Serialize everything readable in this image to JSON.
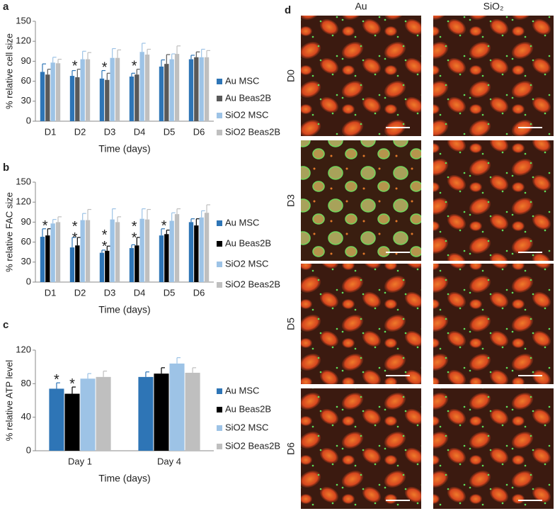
{
  "chart_data": [
    {
      "type": "bar",
      "panel_label": "a",
      "ylabel": "% relative cell size",
      "xlabel": "Time (days)",
      "categories": [
        "D1",
        "D2",
        "D3",
        "D4",
        "D5",
        "D6"
      ],
      "series": [
        {
          "name": "Au MSC",
          "color": "#2e75b6",
          "values": [
            74,
            68,
            64,
            67,
            82,
            93
          ],
          "errors": [
            12,
            8,
            12,
            5,
            10,
            6
          ]
        },
        {
          "name": "Au Beas2B",
          "color": "#595959",
          "values": [
            70,
            66,
            62,
            70,
            86,
            96
          ],
          "errors": [
            8,
            12,
            10,
            8,
            14,
            8
          ]
        },
        {
          "name": "SiO2 MSC",
          "color": "#9dc3e6",
          "values": [
            88,
            93,
            95,
            104,
            93,
            96
          ],
          "errors": [
            8,
            12,
            14,
            13,
            8,
            12
          ]
        },
        {
          "name": "SiO2 Beas2B",
          "color": "#bfbfbf",
          "values": [
            87,
            93,
            95,
            100,
            101,
            96
          ],
          "errors": [
            6,
            10,
            12,
            8,
            12,
            10
          ]
        }
      ],
      "ylim": [
        0,
        150
      ],
      "yticks": [
        0,
        30,
        60,
        90,
        120,
        150
      ],
      "annotations": [
        {
          "text": "*",
          "x": "D2"
        },
        {
          "text": "*",
          "x": "D3"
        },
        {
          "text": "*",
          "x": "D4"
        }
      ]
    },
    {
      "type": "bar",
      "panel_label": "b",
      "ylabel": "% relative FAC size",
      "xlabel": "Time (days)",
      "categories": [
        "D1",
        "D2",
        "D3",
        "D4",
        "D5",
        "D6"
      ],
      "series": [
        {
          "name": "Au MSC",
          "color": "#2e75b6",
          "values": [
            68,
            52,
            44,
            51,
            70,
            90
          ],
          "errors": [
            12,
            15,
            4,
            5,
            10,
            5
          ]
        },
        {
          "name": "Au Beas2B",
          "color": "#000000",
          "values": [
            70,
            55,
            47,
            55,
            72,
            85
          ],
          "errors": [
            10,
            12,
            7,
            12,
            6,
            10
          ]
        },
        {
          "name": "SiO2 MSC",
          "color": "#9dc3e6",
          "values": [
            88,
            93,
            94,
            95,
            92,
            97
          ],
          "errors": [
            6,
            10,
            16,
            15,
            12,
            10
          ]
        },
        {
          "name": "SiO2 Beas2B",
          "color": "#bfbfbf",
          "values": [
            90,
            93,
            90,
            94,
            102,
            104
          ],
          "errors": [
            8,
            16,
            8,
            15,
            8,
            12
          ]
        }
      ],
      "ylim": [
        0,
        150
      ],
      "yticks": [
        0,
        30,
        60,
        90,
        120,
        150
      ],
      "annotations": [
        {
          "text": "*",
          "x": "D1"
        },
        {
          "text": "**",
          "x": "D2"
        },
        {
          "text": "**",
          "x": "D3"
        },
        {
          "text": "**",
          "x": "D4"
        },
        {
          "text": "*",
          "x": "D5"
        }
      ]
    },
    {
      "type": "bar",
      "panel_label": "c",
      "ylabel": "% relative ATP level",
      "xlabel": "Time (days)",
      "categories": [
        "Day 1",
        "Day 4"
      ],
      "series": [
        {
          "name": "Au MSC",
          "color": "#2e75b6",
          "values": [
            74,
            88
          ],
          "errors": [
            7,
            6
          ]
        },
        {
          "name": "Au Beas2B",
          "color": "#000000",
          "values": [
            68,
            92
          ],
          "errors": [
            8,
            7
          ]
        },
        {
          "name": "SiO2 MSC",
          "color": "#9dc3e6",
          "values": [
            86,
            104
          ],
          "errors": [
            6,
            7
          ]
        },
        {
          "name": "SiO2 Beas2B",
          "color": "#bfbfbf",
          "values": [
            88,
            93
          ],
          "errors": [
            7,
            6
          ]
        }
      ],
      "ylim": [
        0,
        120
      ],
      "yticks": [
        0,
        40,
        80,
        120
      ],
      "annotations": [
        {
          "text": "*",
          "x": "Day 1",
          "series": "Au MSC"
        },
        {
          "text": "*",
          "x": "Day 1",
          "series": "Au Beas2B"
        }
      ]
    }
  ],
  "image_grid": {
    "label": "d",
    "columns": [
      "Au",
      "SiO₂"
    ],
    "rows": [
      "D0",
      "D3",
      "D5",
      "D6"
    ]
  }
}
